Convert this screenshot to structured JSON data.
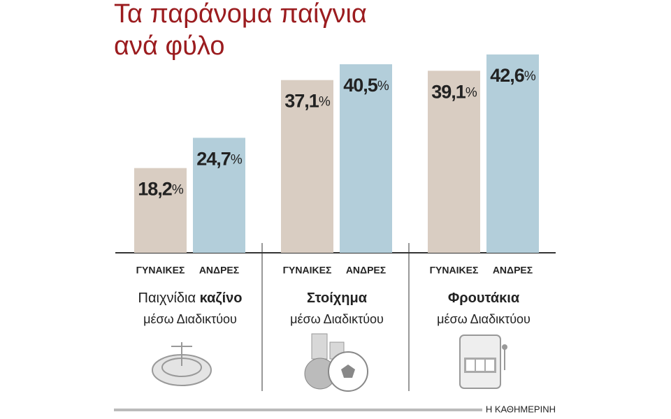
{
  "chart_data": {
    "type": "bar",
    "title": [
      "Τα παράνομα παίγνια",
      "ανά φύλο"
    ],
    "categories": [
      "Παιχνίδια καζίνο",
      "Στοίχημα",
      "Φρουτάκια"
    ],
    "category_subtitle": "μέσω Διαδικτύου",
    "series": [
      {
        "name": "ΓΥΝΑΙΚΕΣ",
        "color": "#d9cdc2",
        "values": [
          18.2,
          37.1,
          39.1
        ],
        "value_labels": [
          "18,2%",
          "37,1%",
          "39,1%"
        ]
      },
      {
        "name": "ΑΝΔΡΕΣ",
        "color": "#b3ceda",
        "values": [
          24.7,
          40.5,
          42.6
        ],
        "value_labels": [
          "24,7%",
          "40,5%",
          "42,6%"
        ]
      }
    ],
    "source": "Η ΚΑΘΗΜΕΡΙΝΗ"
  }
}
